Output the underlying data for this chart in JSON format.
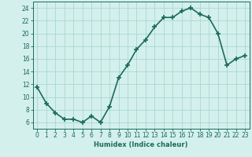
{
  "x": [
    0,
    1,
    2,
    3,
    4,
    5,
    6,
    7,
    8,
    9,
    10,
    11,
    12,
    13,
    14,
    15,
    16,
    17,
    18,
    19,
    20,
    21,
    22,
    23
  ],
  "y": [
    11.5,
    9.0,
    7.5,
    6.5,
    6.5,
    6.0,
    7.0,
    6.0,
    8.5,
    13.0,
    15.0,
    17.5,
    19.0,
    21.0,
    22.5,
    22.5,
    23.5,
    24.0,
    23.0,
    22.5,
    20.0,
    15.0,
    16.0,
    16.5
  ],
  "line_color": "#1a6b5a",
  "marker": "+",
  "marker_size": 4,
  "marker_lw": 1.2,
  "bg_color": "#d4f0ec",
  "grid_color": "#a8d8d0",
  "xlabel": "Humidex (Indice chaleur)",
  "ylabel": "",
  "xlim": [
    -0.5,
    23.5
  ],
  "ylim": [
    5.0,
    25.0
  ],
  "yticks": [
    6,
    8,
    10,
    12,
    14,
    16,
    18,
    20,
    22,
    24
  ],
  "xticks": [
    0,
    1,
    2,
    3,
    4,
    5,
    6,
    7,
    8,
    9,
    10,
    11,
    12,
    13,
    14,
    15,
    16,
    17,
    18,
    19,
    20,
    21,
    22,
    23
  ],
  "xlabel_fontsize": 6.0,
  "tick_fontsize": 5.5,
  "line_width": 1.2
}
